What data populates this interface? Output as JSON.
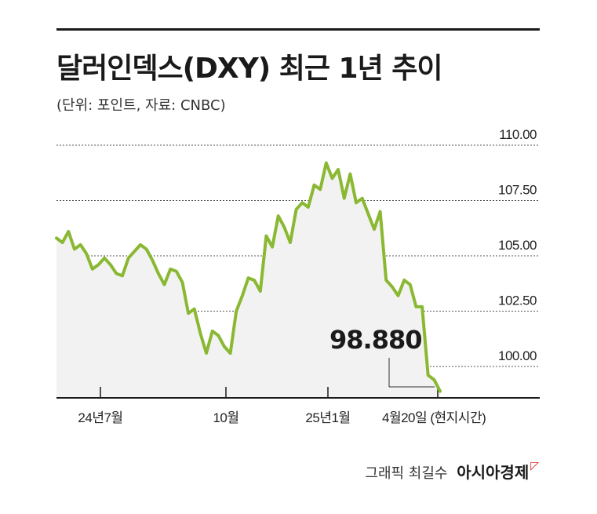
{
  "title": "달러인덱스(DXY) 최근 1년 추이",
  "subtitle": "(단위: 포인트, 자료: CNBC)",
  "callout": "98.880",
  "credit": {
    "author": "그래픽 최길수",
    "brand": "아시아경제",
    "brand_mark": "ㅁ"
  },
  "chart_data": {
    "type": "area",
    "title": "달러인덱스(DXY) 최근 1년 추이",
    "xlabel": "",
    "ylabel": "",
    "unit": "포인트",
    "ylim": [
      98.6,
      110.0
    ],
    "y_ticks": [
      "110.00",
      "107.50",
      "105.00",
      "102.50",
      "100.00"
    ],
    "x_ticks": [
      "24년7월",
      "10월",
      "25년1월",
      "4월20일 (현지시간)"
    ],
    "grid": true,
    "line_color": "#8ab833",
    "fill_color": "#f2f2f2",
    "values": [
      105.8,
      105.6,
      106.1,
      105.3,
      105.5,
      105.1,
      104.4,
      104.6,
      104.9,
      104.6,
      104.2,
      104.1,
      104.9,
      105.2,
      105.5,
      105.3,
      104.8,
      104.2,
      103.7,
      104.4,
      104.3,
      103.8,
      102.4,
      102.6,
      101.5,
      100.6,
      101.6,
      101.4,
      100.9,
      100.6,
      102.5,
      103.2,
      104.0,
      103.9,
      103.4,
      105.9,
      105.4,
      106.8,
      106.3,
      105.6,
      107.1,
      107.4,
      107.2,
      108.2,
      108.0,
      109.2,
      108.5,
      108.9,
      107.6,
      108.7,
      107.4,
      107.6,
      106.9,
      106.2,
      107.0,
      103.9,
      103.6,
      103.2,
      103.9,
      103.7,
      102.7,
      102.7,
      99.6,
      99.4,
      98.88
    ]
  }
}
